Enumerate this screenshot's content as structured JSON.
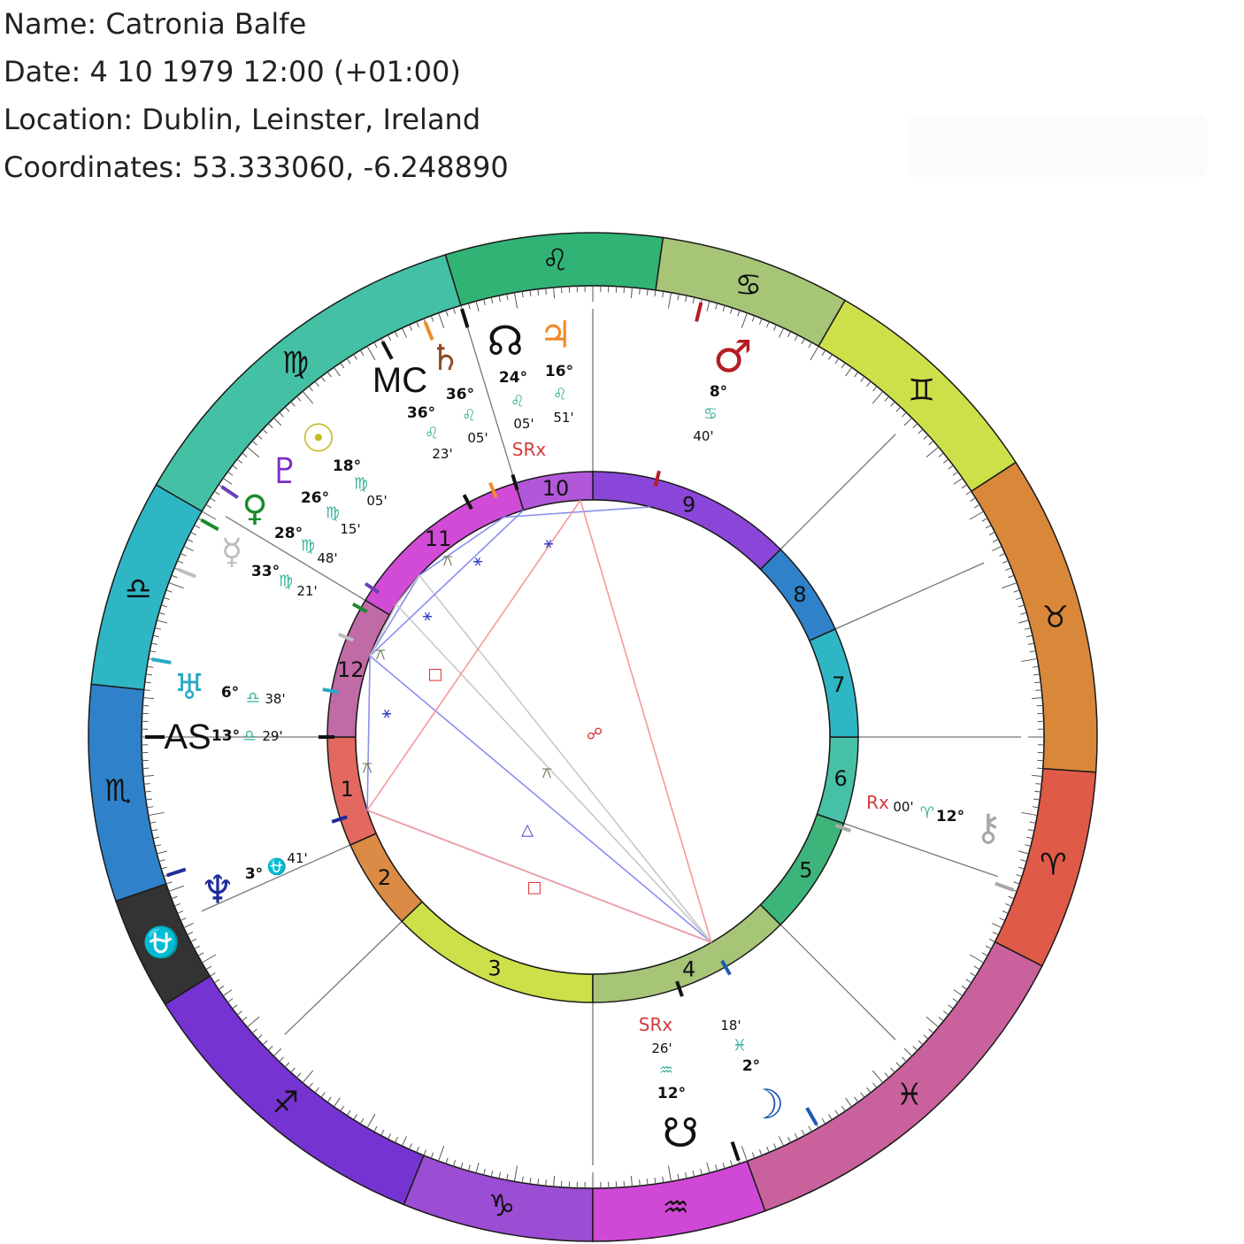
{
  "header": {
    "name_line": "Name: Catronia Balfe",
    "date_line": "Date: 4 10 1979 12:00 (+01:00)",
    "location_line": "Location: Dublin, Leinster, Ireland",
    "coordinates_line": "Coordinates: 53.333060, -6.248890"
  },
  "wheel": {
    "signs": [
      {
        "name": "aries",
        "glyph": "♈",
        "color": "#e05a48"
      },
      {
        "name": "taurus",
        "glyph": "♉",
        "color": "#d9883a"
      },
      {
        "name": "gemini",
        "glyph": "♊",
        "color": "#cde04a"
      },
      {
        "name": "cancer",
        "glyph": "♋",
        "color": "#a6c576"
      },
      {
        "name": "leo",
        "glyph": "♌",
        "color": "#31b376"
      },
      {
        "name": "virgo",
        "glyph": "♍",
        "color": "#44c1a4"
      },
      {
        "name": "libra",
        "glyph": "♎",
        "color": "#2fb6c4"
      },
      {
        "name": "scorpio",
        "glyph": "♏",
        "color": "#2f82c9"
      },
      {
        "name": "ophiuchus",
        "glyph": "⛎",
        "color": "#333333"
      },
      {
        "name": "sagittarius",
        "glyph": "♐",
        "color": "#7533d1"
      },
      {
        "name": "capricorn",
        "glyph": "♑",
        "color": "#9b4dd3"
      },
      {
        "name": "aquarius",
        "glyph": "♒",
        "color": "#d048d6"
      },
      {
        "name": "pisces",
        "glyph": "♓",
        "color": "#c9619c"
      }
    ],
    "houses": [
      {
        "num": "1",
        "color": "#e3685f"
      },
      {
        "num": "2",
        "color": "#db8b45"
      },
      {
        "num": "3",
        "color": "#cde04a"
      },
      {
        "num": "4",
        "color": "#a6c576"
      },
      {
        "num": "5",
        "color": "#3db57a"
      },
      {
        "num": "6",
        "color": "#47c1a6"
      },
      {
        "num": "7",
        "color": "#2fb6c4"
      },
      {
        "num": "8",
        "color": "#2f82c9"
      },
      {
        "num": "9",
        "color": "#8a46d8"
      },
      {
        "num": "10",
        "color": "#b157d9"
      },
      {
        "num": "11",
        "color": "#d14bd6"
      },
      {
        "num": "12",
        "color": "#c06aa6"
      }
    ],
    "planets": [
      {
        "name": "mc",
        "glyph": "MC",
        "color": "#111111",
        "deg": "36°",
        "sign": "♌",
        "min": "23'"
      },
      {
        "name": "saturn",
        "glyph": "♄",
        "color": "#8b4a1e",
        "deg": "36°",
        "sign": "♌",
        "min": "05'"
      },
      {
        "name": "north-node",
        "glyph": "☊",
        "color": "#111111",
        "deg": "24°",
        "sign": "♌",
        "min": "05'",
        "retro": "SRx"
      },
      {
        "name": "jupiter",
        "glyph": "♃",
        "color": "#f08c2c",
        "deg": "16°",
        "sign": "♌",
        "min": "51'"
      },
      {
        "name": "mars",
        "glyph": "♂",
        "color": "#b21e22",
        "deg": "8°",
        "sign": "♋",
        "min": "40'"
      },
      {
        "name": "sun",
        "glyph": "☉",
        "color": "#c7ba23",
        "deg": "18°",
        "sign": "♍",
        "min": "05'"
      },
      {
        "name": "pluto",
        "glyph": "♇",
        "color": "#7b2bc4",
        "deg": "26°",
        "sign": "♍",
        "min": "15'"
      },
      {
        "name": "venus",
        "glyph": "♀",
        "color": "#1b8a2e",
        "deg": "28°",
        "sign": "♍",
        "min": "48'"
      },
      {
        "name": "mercury",
        "glyph": "☿",
        "color": "#bdbdbd",
        "deg": "33°",
        "sign": "♍",
        "min": "21'"
      },
      {
        "name": "uranus",
        "glyph": "♅",
        "color": "#2aa9c3",
        "deg": "6°",
        "sign": "♎",
        "min": "38'"
      },
      {
        "name": "ascendant",
        "glyph": "AS",
        "color": "#111111",
        "deg": "13°",
        "sign": "♎",
        "min": "29'"
      },
      {
        "name": "neptune",
        "glyph": "♆",
        "color": "#1f2a9e",
        "deg": "3°",
        "sign": "⛎",
        "min": "41'"
      },
      {
        "name": "chiron",
        "glyph": "⚷",
        "color": "#a8a8a8",
        "deg": "12°",
        "sign": "♈",
        "min": "00'",
        "retro": "Rx"
      },
      {
        "name": "south-node",
        "glyph": "☋",
        "color": "#111111",
        "deg": "12°",
        "sign": "♒",
        "min": "26'",
        "retro": "SRx"
      },
      {
        "name": "moon",
        "glyph": "☽",
        "color": "#1d59b3",
        "deg": "2°",
        "sign": "♓",
        "min": "18'"
      }
    ],
    "aspect_symbols": [
      "⚹",
      "⚻",
      "□",
      "△",
      "☍"
    ]
  }
}
